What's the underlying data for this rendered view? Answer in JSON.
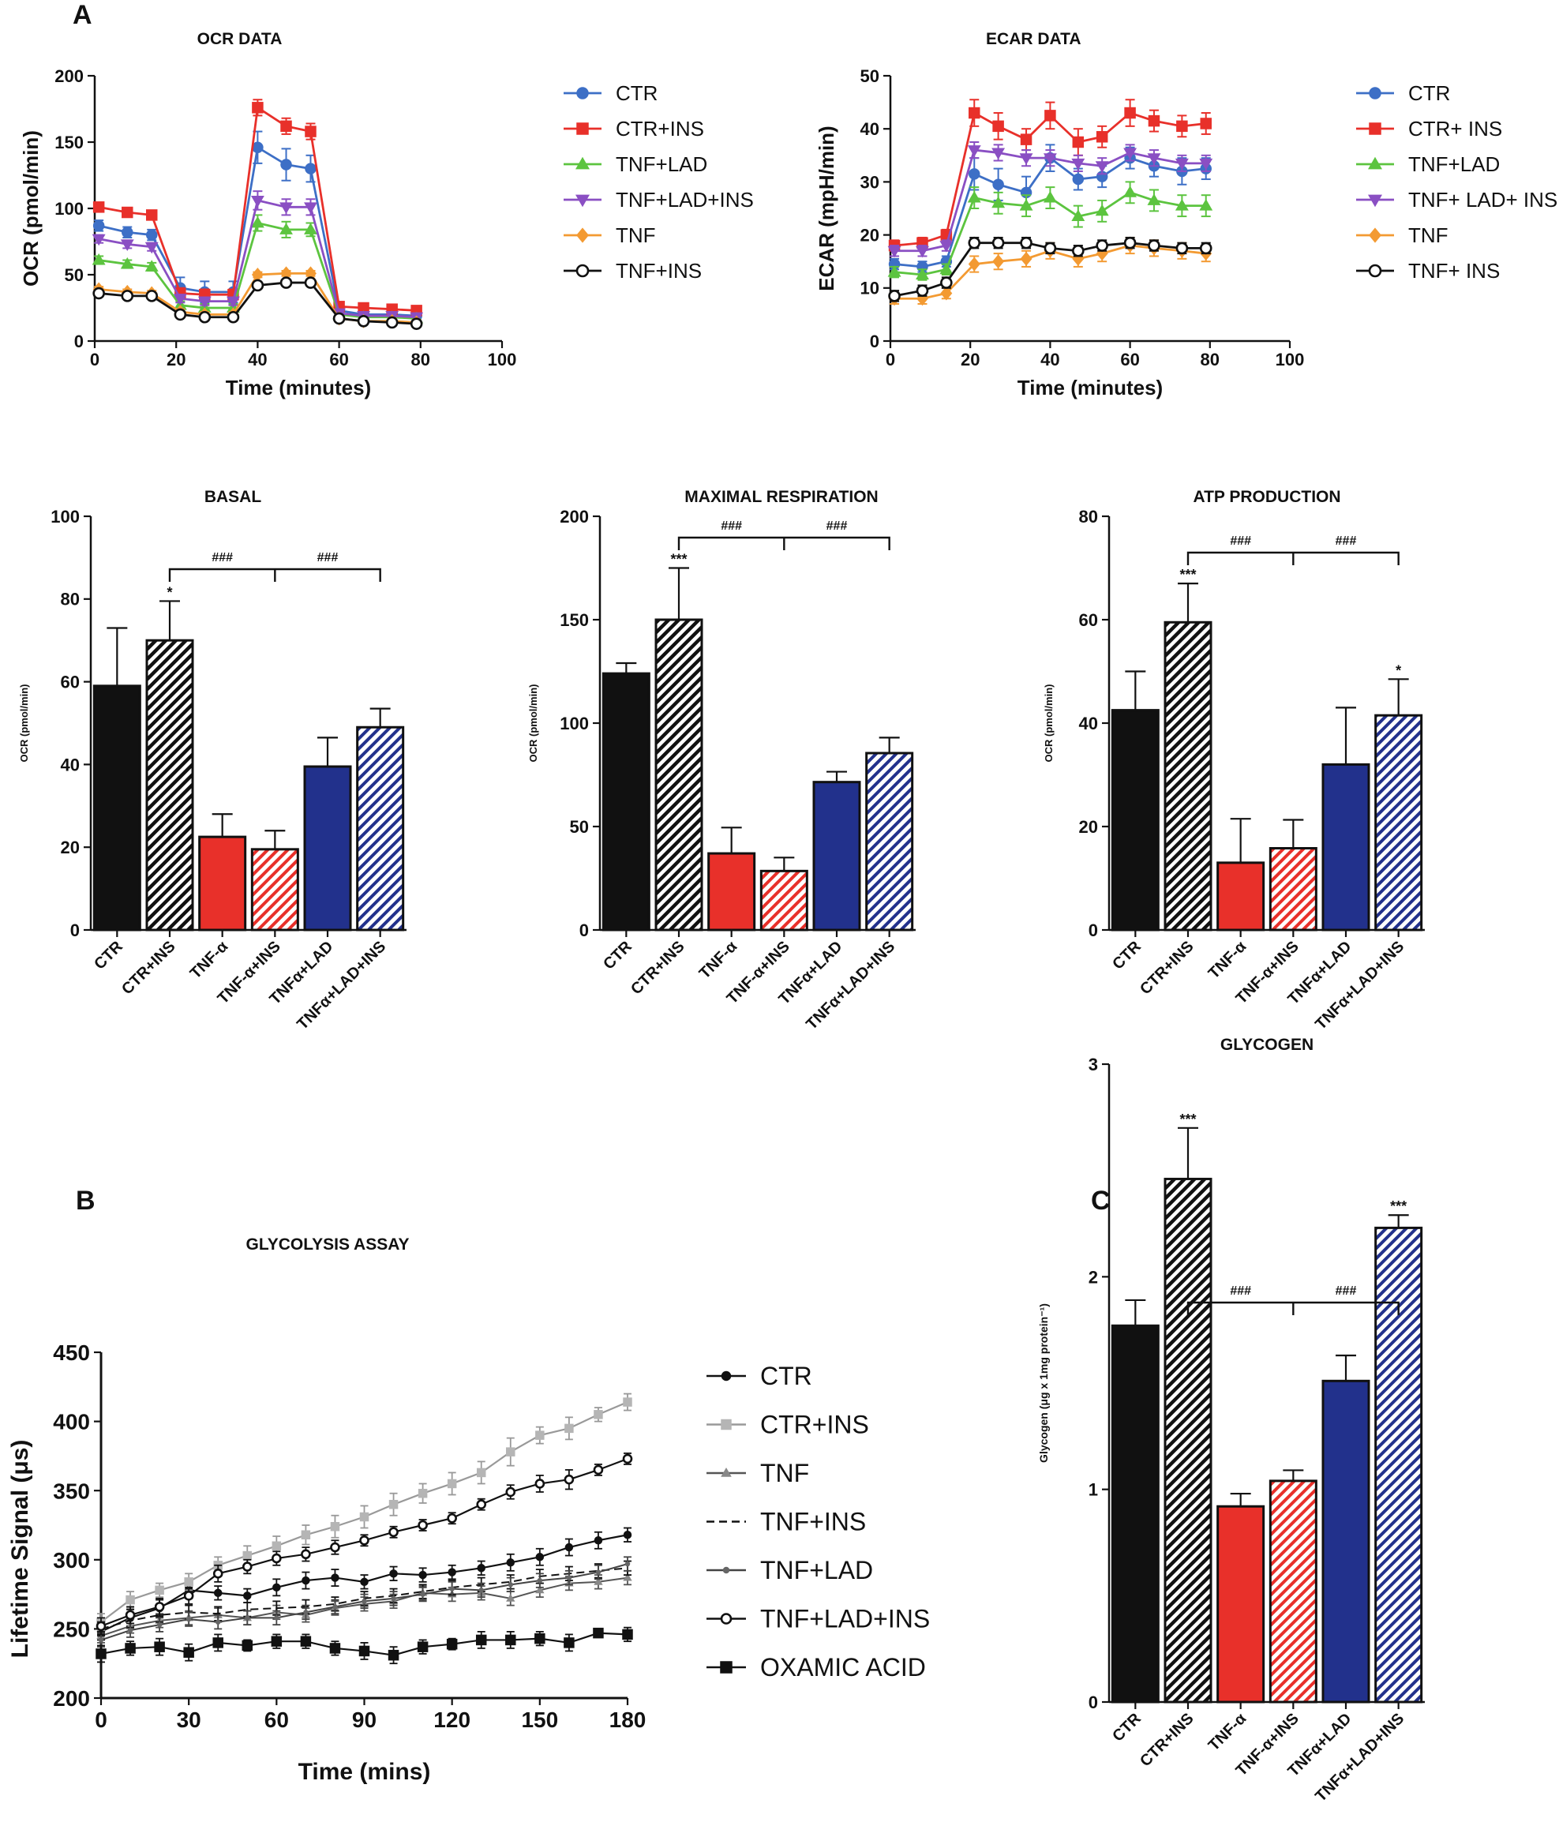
{
  "panel_labels": {
    "a": "A",
    "b": "B",
    "c": "C"
  },
  "colors": {
    "black": "#111111",
    "red": "#e8302a",
    "blue": "#22318c",
    "ctr": "#3d6fc6",
    "ctr_ins": "#e8302a",
    "tnf_lad": "#5cc43f",
    "tnf_lad_ins": "#8a4fc3",
    "tnf": "#f39a32",
    "tnf_ins": "#111111",
    "gray": "#9a9a9a"
  },
  "chart_data": [
    {
      "id": "ocr",
      "type": "line",
      "title": "OCR DATA",
      "xlabel": "Time (minutes)",
      "ylabel": "OCR (pmol/min)",
      "xlim": [
        0,
        100
      ],
      "ylim": [
        0,
        200
      ],
      "xticks": [
        0,
        20,
        40,
        60,
        80,
        100
      ],
      "yticks": [
        0,
        50,
        100,
        150,
        200
      ],
      "legend": "right",
      "x": [
        1,
        8,
        14,
        21,
        27,
        34,
        40,
        47,
        53,
        60,
        66,
        73,
        79
      ],
      "series": [
        {
          "name": "CTR",
          "color": "#3d6fc6",
          "marker": "circle",
          "values": [
            87,
            82,
            80,
            40,
            37,
            37,
            146,
            133,
            130,
            23,
            20,
            20,
            19
          ],
          "errors": [
            4,
            4,
            4,
            8,
            8,
            8,
            12,
            12,
            10,
            3,
            3,
            3,
            3
          ]
        },
        {
          "name": "CTR+INS",
          "color": "#e8302a",
          "marker": "square",
          "values": [
            101,
            97,
            95,
            36,
            35,
            35,
            176,
            162,
            158,
            26,
            25,
            24,
            23
          ],
          "errors": [
            3,
            3,
            3,
            4,
            4,
            4,
            6,
            6,
            6,
            3,
            3,
            3,
            3
          ]
        },
        {
          "name": "TNF+LAD",
          "color": "#5cc43f",
          "marker": "triangle",
          "values": [
            61,
            58,
            56,
            27,
            25,
            25,
            89,
            84,
            84,
            20,
            18,
            18,
            17
          ],
          "errors": [
            3,
            3,
            3,
            3,
            3,
            3,
            6,
            6,
            5,
            3,
            3,
            3,
            3
          ]
        },
        {
          "name": "TNF+LAD+INS",
          "color": "#8a4fc3",
          "marker": "triangle-down",
          "values": [
            77,
            73,
            71,
            32,
            30,
            30,
            106,
            101,
            101,
            21,
            19,
            19,
            18
          ],
          "errors": [
            3,
            3,
            3,
            3,
            3,
            3,
            7,
            6,
            6,
            3,
            3,
            3,
            3
          ]
        },
        {
          "name": "TNF",
          "color": "#f39a32",
          "marker": "diamond",
          "values": [
            39,
            37,
            36,
            22,
            20,
            20,
            50,
            51,
            51,
            17,
            15,
            15,
            14
          ],
          "errors": [
            2,
            2,
            2,
            2,
            2,
            2,
            2,
            2,
            2,
            2,
            2,
            2,
            2
          ]
        },
        {
          "name": "TNF+INS",
          "color": "#111111",
          "marker": "open-circle",
          "values": [
            36,
            34,
            34,
            20,
            18,
            18,
            42,
            44,
            44,
            17,
            15,
            14,
            13
          ],
          "errors": [
            2,
            2,
            2,
            2,
            2,
            2,
            2,
            2,
            2,
            2,
            2,
            2,
            2
          ]
        }
      ]
    },
    {
      "id": "ecar",
      "type": "line",
      "title": "ECAR DATA",
      "xlabel": "Time (minutes)",
      "ylabel": "ECAR (mpH/min)",
      "xlim": [
        0,
        100
      ],
      "ylim": [
        0,
        50
      ],
      "xticks": [
        0,
        20,
        40,
        60,
        80,
        100
      ],
      "yticks": [
        0,
        10,
        20,
        30,
        40,
        50
      ],
      "legend": "right",
      "x": [
        1,
        8,
        14,
        21,
        27,
        34,
        40,
        47,
        53,
        60,
        66,
        73,
        79
      ],
      "series": [
        {
          "name": "CTR",
          "color": "#3d6fc6",
          "marker": "circle",
          "values": [
            14.5,
            14,
            15,
            31.5,
            29.5,
            28,
            34.5,
            30.5,
            31,
            34.5,
            33,
            32,
            32.5
          ],
          "errors": [
            1,
            1,
            1,
            3,
            3,
            3,
            2.5,
            2,
            2,
            2,
            2,
            2.5,
            2
          ]
        },
        {
          "name": "CTR+ INS",
          "color": "#e8302a",
          "marker": "square",
          "values": [
            18,
            18.5,
            20,
            43,
            40.5,
            38,
            42.5,
            37.5,
            38.5,
            43,
            41.5,
            40.5,
            41
          ],
          "errors": [
            1,
            1,
            1,
            2.5,
            2.5,
            2,
            2.5,
            2.5,
            2,
            2.5,
            2,
            2,
            2
          ]
        },
        {
          "name": "TNF+LAD",
          "color": "#5cc43f",
          "marker": "triangle",
          "values": [
            13,
            12.5,
            13.5,
            27,
            26,
            25.5,
            27,
            23.5,
            24.5,
            28,
            26.5,
            25.5,
            25.5
          ],
          "errors": [
            1,
            1,
            1,
            2,
            2,
            2,
            2,
            2,
            2,
            2,
            2,
            2,
            2
          ]
        },
        {
          "name": "TNF+ LAD+ INS",
          "color": "#8a4fc3",
          "marker": "triangle-down",
          "values": [
            17,
            17,
            18,
            36,
            35.5,
            34.5,
            34.5,
            33.5,
            33,
            35.5,
            34.5,
            33.5,
            33.5
          ],
          "errors": [
            1,
            1,
            1,
            1.5,
            1.5,
            1.5,
            1.5,
            1.5,
            1.5,
            1.5,
            1.5,
            1.5,
            1.5
          ]
        },
        {
          "name": "TNF",
          "color": "#f39a32",
          "marker": "diamond",
          "values": [
            8,
            8,
            9,
            14.5,
            15,
            15.5,
            17,
            15.5,
            16.5,
            18,
            17.5,
            17,
            16.5
          ],
          "errors": [
            1,
            1,
            1,
            1.5,
            1.5,
            1.5,
            1.5,
            1.5,
            1.5,
            1.5,
            1.5,
            1.5,
            1.5
          ]
        },
        {
          "name": "TNF+ INS",
          "color": "#111111",
          "marker": "open-circle",
          "values": [
            8.5,
            9.5,
            11,
            18.5,
            18.5,
            18.5,
            17.5,
            17,
            18,
            18.5,
            18,
            17.5,
            17.5
          ],
          "errors": [
            1,
            1,
            1,
            1,
            1,
            1,
            1,
            1,
            1,
            1,
            1,
            1,
            1
          ]
        }
      ]
    },
    {
      "id": "basal",
      "type": "bar",
      "title": "BASAL",
      "ylabel": "OCR (pmol/min)",
      "ylim": [
        0,
        100
      ],
      "yticks": [
        0,
        20,
        40,
        60,
        80,
        100
      ],
      "categories": [
        "CTR",
        "CTR+INS",
        "TNF-α",
        "TNF-α+INS",
        "TNFα+LAD",
        "TNFα+LAD+INS"
      ],
      "values": [
        59,
        70,
        22.5,
        19.5,
        39.5,
        49
      ],
      "errors": [
        14,
        9.5,
        5.5,
        4.5,
        7,
        4.5
      ],
      "fills": [
        "#111111",
        "#111111",
        "#e8302a",
        "#e8302a",
        "#22318c",
        "#22318c"
      ],
      "hatched": [
        false,
        true,
        false,
        true,
        false,
        true
      ],
      "stars": [
        "",
        "*",
        "",
        "",
        "",
        ""
      ],
      "bracket_label": "###"
    },
    {
      "id": "maximal",
      "type": "bar",
      "title": "MAXIMAL RESPIRATION",
      "ylabel": "OCR (pmol/min)",
      "ylim": [
        0,
        200
      ],
      "yticks": [
        0,
        50,
        100,
        150,
        200
      ],
      "categories": [
        "CTR",
        "CTR+INS",
        "TNF-α",
        "TNF-α+INS",
        "TNFα+LAD",
        "TNFα+LAD+INS"
      ],
      "values": [
        124,
        150,
        37,
        28.5,
        71.5,
        85.5
      ],
      "errors": [
        5,
        25,
        12.5,
        6.5,
        5,
        7.5
      ],
      "fills": [
        "#111111",
        "#111111",
        "#e8302a",
        "#e8302a",
        "#22318c",
        "#22318c"
      ],
      "hatched": [
        false,
        true,
        false,
        true,
        false,
        true
      ],
      "stars": [
        "",
        "***",
        "",
        "",
        "",
        ""
      ],
      "bracket_label": "###"
    },
    {
      "id": "atp",
      "type": "bar",
      "title": "ATP PRODUCTION",
      "ylabel": "OCR (pmol/min)",
      "ylim": [
        0,
        80
      ],
      "yticks": [
        0,
        20,
        40,
        60,
        80
      ],
      "categories": [
        "CTR",
        "CTR+INS",
        "TNF-α",
        "TNF-α+INS",
        "TNFα+LAD",
        "TNFα+LAD+INS"
      ],
      "values": [
        42.5,
        59.5,
        13,
        15.8,
        32,
        41.5
      ],
      "errors": [
        7.5,
        7.5,
        8.5,
        5.5,
        11,
        7
      ],
      "fills": [
        "#111111",
        "#111111",
        "#e8302a",
        "#e8302a",
        "#22318c",
        "#22318c"
      ],
      "hatched": [
        false,
        true,
        false,
        true,
        false,
        true
      ],
      "stars": [
        "",
        "***",
        "",
        "",
        "",
        "*"
      ],
      "bracket_label": "###"
    },
    {
      "id": "glycolysis",
      "type": "line",
      "title": "GLYCOLYSIS ASSAY",
      "xlabel": "Time (mins)",
      "ylabel": "Lifetime Signal (μs)",
      "xlim": [
        0,
        180
      ],
      "ylim": [
        200,
        450
      ],
      "xticks": [
        0,
        30,
        60,
        90,
        120,
        150,
        180
      ],
      "yticks": [
        200,
        250,
        300,
        350,
        400,
        450
      ],
      "legend": "right",
      "x": [
        0,
        10,
        20,
        30,
        40,
        50,
        60,
        70,
        80,
        90,
        100,
        110,
        120,
        130,
        140,
        150,
        160,
        170,
        180
      ],
      "series": [
        {
          "name": "CTR",
          "style": "filled-circle",
          "values": [
            248,
            258,
            265,
            278,
            276,
            274,
            280,
            285,
            287,
            284,
            290,
            289,
            291,
            294,
            298,
            302,
            309,
            314,
            318
          ],
          "errors": [
            6,
            6,
            6,
            6,
            5,
            5,
            6,
            6,
            6,
            5,
            5,
            5,
            5,
            5,
            6,
            6,
            6,
            6,
            5
          ]
        },
        {
          "name": "CTR+INS",
          "style": "gray-square",
          "values": [
            255,
            271,
            278,
            284,
            296,
            303,
            310,
            318,
            324,
            331,
            340,
            348,
            355,
            363,
            378,
            390,
            395,
            405,
            414
          ],
          "errors": [
            6,
            6,
            5,
            6,
            6,
            7,
            7,
            7,
            8,
            8,
            8,
            7,
            8,
            8,
            10,
            6,
            8,
            5,
            6
          ]
        },
        {
          "name": "TNF",
          "style": "gray-triangle",
          "values": [
            245,
            252,
            256,
            258,
            260,
            258,
            262,
            260,
            265,
            268,
            270,
            276,
            275,
            276,
            272,
            278,
            283,
            284,
            287
          ],
          "errors": [
            5,
            5,
            5,
            5,
            5,
            5,
            5,
            5,
            5,
            5,
            5,
            5,
            5,
            5,
            5,
            5,
            5,
            5,
            5
          ]
        },
        {
          "name": "TNF+INS",
          "style": "dash",
          "values": [
            250,
            256,
            260,
            262,
            261,
            264,
            265,
            266,
            268,
            272,
            274,
            277,
            280,
            282,
            284,
            288,
            290,
            292,
            294
          ],
          "errors": [
            5,
            5,
            5,
            5,
            5,
            5,
            5,
            5,
            5,
            5,
            5,
            5,
            5,
            5,
            5,
            5,
            5,
            5,
            5
          ]
        },
        {
          "name": "TNF+LAD",
          "style": "small-dot",
          "values": [
            242,
            249,
            253,
            257,
            255,
            258,
            258,
            262,
            266,
            270,
            272,
            275,
            279,
            278,
            282,
            285,
            287,
            291,
            297
          ],
          "errors": [
            5,
            5,
            5,
            5,
            5,
            5,
            5,
            5,
            5,
            5,
            5,
            5,
            5,
            5,
            5,
            5,
            5,
            5,
            5
          ]
        },
        {
          "name": "TNF+LAD+INS",
          "style": "open-circle",
          "values": [
            252,
            260,
            266,
            274,
            290,
            295,
            301,
            304,
            309,
            314,
            320,
            325,
            330,
            340,
            349,
            355,
            358,
            365,
            373
          ],
          "errors": [
            6,
            6,
            6,
            6,
            6,
            5,
            5,
            5,
            5,
            4,
            4,
            4,
            4,
            4,
            5,
            6,
            7,
            4,
            4
          ]
        },
        {
          "name": "OXAMIC ACID",
          "style": "filled-square",
          "values": [
            232,
            236,
            237,
            233,
            240,
            238,
            241,
            241,
            236,
            234,
            231,
            237,
            239,
            242,
            242,
            243,
            240,
            247,
            246
          ],
          "errors": [
            6,
            5,
            6,
            6,
            6,
            4,
            5,
            5,
            5,
            6,
            6,
            5,
            4,
            6,
            6,
            5,
            6,
            3,
            5
          ]
        }
      ]
    },
    {
      "id": "glycogen",
      "type": "bar",
      "title": "GLYCOGEN",
      "ylabel": "Glycogen (μg x 1mg protein⁻¹)",
      "ylim": [
        0,
        3
      ],
      "yticks": [
        0,
        1,
        2,
        3
      ],
      "categories": [
        "CTR",
        "CTR+INS",
        "TNF-α",
        "TNF-α+INS",
        "TNFα+LAD",
        "TNFα+LAD+INS"
      ],
      "values": [
        1.77,
        2.46,
        0.92,
        1.04,
        1.51,
        2.23
      ],
      "errors": [
        0.12,
        0.24,
        0.06,
        0.05,
        0.12,
        0.06
      ],
      "fills": [
        "#111111",
        "#111111",
        "#e8302a",
        "#e8302a",
        "#22318c",
        "#22318c"
      ],
      "hatched": [
        false,
        true,
        false,
        true,
        false,
        true
      ],
      "stars": [
        "",
        "***",
        "",
        "",
        "",
        "***"
      ],
      "bracket_label": "###"
    }
  ]
}
